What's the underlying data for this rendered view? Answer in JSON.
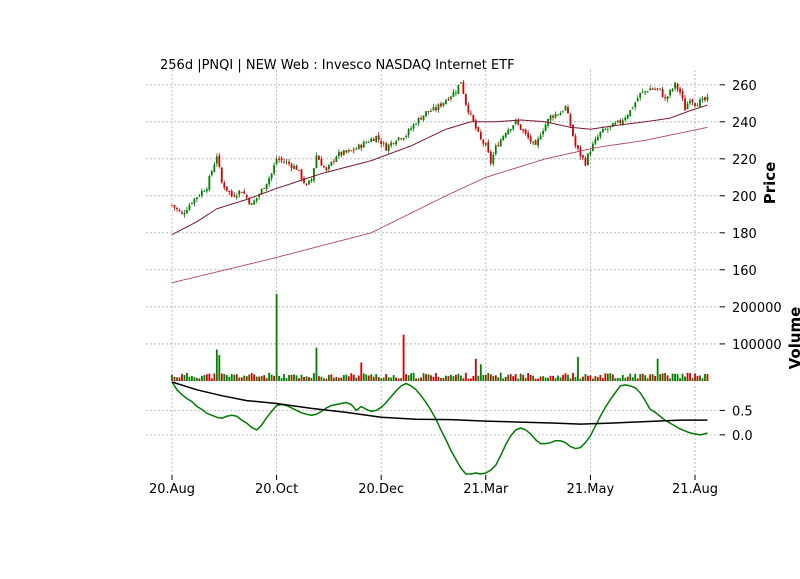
{
  "chart_data": [
    {
      "type": "candlestick",
      "title": "256d |PNQI | NEW Web : Invesco NASDAQ Internet ETF",
      "ylabel": "Price",
      "ylim": [
        148,
        268
      ],
      "yticks": [
        160,
        180,
        200,
        220,
        240,
        260
      ],
      "x_tick_labels": [
        "20.Aug",
        "20.Oct",
        "20.Dec",
        "21.Mar",
        "21.May",
        "21.Aug"
      ],
      "x_tick_index": [
        0,
        42,
        84,
        126,
        168,
        210
      ],
      "n_bars": 216,
      "close_anchors": [
        [
          0,
          195
        ],
        [
          4,
          190
        ],
        [
          8,
          197
        ],
        [
          14,
          205
        ],
        [
          18,
          222
        ],
        [
          20,
          207
        ],
        [
          24,
          200
        ],
        [
          28,
          203
        ],
        [
          32,
          195
        ],
        [
          36,
          203
        ],
        [
          40,
          212
        ],
        [
          42,
          220
        ],
        [
          46,
          218
        ],
        [
          50,
          215
        ],
        [
          54,
          205
        ],
        [
          56,
          209
        ],
        [
          58,
          222
        ],
        [
          62,
          213
        ],
        [
          66,
          222
        ],
        [
          72,
          224
        ],
        [
          78,
          229
        ],
        [
          82,
          232
        ],
        [
          86,
          226
        ],
        [
          90,
          231
        ],
        [
          94,
          233
        ],
        [
          98,
          240
        ],
        [
          102,
          245
        ],
        [
          106,
          247
        ],
        [
          110,
          252
        ],
        [
          114,
          257
        ],
        [
          116,
          262
        ],
        [
          118,
          250
        ],
        [
          120,
          243
        ],
        [
          124,
          230
        ],
        [
          126,
          227
        ],
        [
          128,
          218
        ],
        [
          130,
          226
        ],
        [
          134,
          235
        ],
        [
          138,
          240
        ],
        [
          142,
          233
        ],
        [
          146,
          226
        ],
        [
          148,
          234
        ],
        [
          152,
          243
        ],
        [
          156,
          245
        ],
        [
          158,
          248
        ],
        [
          160,
          238
        ],
        [
          162,
          227
        ],
        [
          164,
          222
        ],
        [
          166,
          218
        ],
        [
          168,
          225
        ],
        [
          172,
          234
        ],
        [
          176,
          237
        ],
        [
          180,
          240
        ],
        [
          184,
          246
        ],
        [
          188,
          255
        ],
        [
          192,
          258
        ],
        [
          196,
          257
        ],
        [
          198,
          252
        ],
        [
          202,
          260
        ],
        [
          204,
          256
        ],
        [
          206,
          247
        ],
        [
          208,
          253
        ],
        [
          210,
          250
        ],
        [
          215,
          252
        ]
      ],
      "sma_short": [
        [
          0,
          179
        ],
        [
          10,
          186
        ],
        [
          18,
          193
        ],
        [
          30,
          198
        ],
        [
          42,
          204
        ],
        [
          60,
          212
        ],
        [
          80,
          219
        ],
        [
          96,
          227
        ],
        [
          110,
          236
        ],
        [
          120,
          240
        ],
        [
          130,
          240
        ],
        [
          140,
          241
        ],
        [
          150,
          240
        ],
        [
          160,
          237
        ],
        [
          168,
          236
        ],
        [
          178,
          238
        ],
        [
          190,
          240
        ],
        [
          200,
          242
        ],
        [
          208,
          246
        ],
        [
          215,
          249
        ]
      ],
      "sma_long": [
        [
          0,
          153
        ],
        [
          40,
          166
        ],
        [
          80,
          180
        ],
        [
          110,
          200
        ],
        [
          126,
          210
        ],
        [
          150,
          220
        ],
        [
          170,
          226
        ],
        [
          190,
          230
        ],
        [
          215,
          237
        ]
      ],
      "up_color": "#008000",
      "down_color": "#d40000",
      "sma_short_color": "#7a1830",
      "sma_long_color": "#b04a60"
    },
    {
      "type": "bar",
      "ylabel": "Volume",
      "ylim": [
        0,
        240000
      ],
      "yticks": [
        100000,
        200000
      ],
      "spikes": [
        [
          18,
          85000
        ],
        [
          19,
          70000
        ],
        [
          42,
          235000
        ],
        [
          58,
          90000
        ],
        [
          76,
          50000
        ],
        [
          93,
          125000
        ],
        [
          122,
          60000
        ],
        [
          124,
          45000
        ],
        [
          163,
          65000
        ],
        [
          195,
          60000
        ]
      ],
      "base_volume": 18000
    },
    {
      "type": "line",
      "ylim": [
        -0.82,
        1.1
      ],
      "yticks": [
        0.0,
        0.5
      ],
      "ytick_labels": [
        "0.0",
        "0.5"
      ],
      "series": [
        {
          "color": "#007a00",
          "points": [
            [
              0,
              1.08
            ],
            [
              2,
              0.92
            ],
            [
              4,
              0.82
            ],
            [
              6,
              0.74
            ],
            [
              8,
              0.68
            ],
            [
              10,
              0.58
            ],
            [
              12,
              0.52
            ],
            [
              14,
              0.44
            ],
            [
              16,
              0.4
            ],
            [
              18,
              0.36
            ],
            [
              20,
              0.34
            ],
            [
              22,
              0.38
            ],
            [
              24,
              0.4
            ],
            [
              26,
              0.38
            ],
            [
              28,
              0.3
            ],
            [
              30,
              0.24
            ],
            [
              32,
              0.15
            ],
            [
              34,
              0.1
            ],
            [
              36,
              0.2
            ],
            [
              38,
              0.35
            ],
            [
              40,
              0.48
            ],
            [
              42,
              0.6
            ],
            [
              44,
              0.62
            ],
            [
              46,
              0.6
            ],
            [
              48,
              0.55
            ],
            [
              50,
              0.5
            ],
            [
              52,
              0.45
            ],
            [
              54,
              0.42
            ],
            [
              56,
              0.4
            ],
            [
              58,
              0.42
            ],
            [
              60,
              0.48
            ],
            [
              62,
              0.55
            ],
            [
              64,
              0.6
            ],
            [
              66,
              0.62
            ],
            [
              68,
              0.64
            ],
            [
              70,
              0.66
            ],
            [
              72,
              0.62
            ],
            [
              74,
              0.5
            ],
            [
              76,
              0.58
            ],
            [
              78,
              0.52
            ],
            [
              80,
              0.48
            ],
            [
              82,
              0.5
            ],
            [
              84,
              0.56
            ],
            [
              86,
              0.66
            ],
            [
              88,
              0.78
            ],
            [
              90,
              0.9
            ],
            [
              92,
              1.0
            ],
            [
              94,
              1.05
            ],
            [
              96,
              1.0
            ],
            [
              98,
              0.92
            ],
            [
              100,
              0.8
            ],
            [
              102,
              0.66
            ],
            [
              104,
              0.5
            ],
            [
              106,
              0.32
            ],
            [
              108,
              0.1
            ],
            [
              110,
              -0.1
            ],
            [
              112,
              -0.32
            ],
            [
              114,
              -0.5
            ],
            [
              116,
              -0.68
            ],
            [
              118,
              -0.8
            ],
            [
              120,
              -0.8
            ],
            [
              122,
              -0.78
            ],
            [
              124,
              -0.8
            ],
            [
              126,
              -0.78
            ],
            [
              128,
              -0.72
            ],
            [
              130,
              -0.62
            ],
            [
              132,
              -0.42
            ],
            [
              134,
              -0.2
            ],
            [
              136,
              -0.02
            ],
            [
              138,
              0.1
            ],
            [
              140,
              0.14
            ],
            [
              142,
              0.1
            ],
            [
              144,
              0.02
            ],
            [
              146,
              -0.1
            ],
            [
              148,
              -0.18
            ],
            [
              150,
              -0.18
            ],
            [
              152,
              -0.16
            ],
            [
              154,
              -0.12
            ],
            [
              156,
              -0.12
            ],
            [
              158,
              -0.16
            ],
            [
              160,
              -0.24
            ],
            [
              162,
              -0.28
            ],
            [
              164,
              -0.26
            ],
            [
              166,
              -0.16
            ],
            [
              168,
              -0.02
            ],
            [
              170,
              0.18
            ],
            [
              172,
              0.38
            ],
            [
              174,
              0.56
            ],
            [
              176,
              0.72
            ],
            [
              178,
              0.86
            ],
            [
              180,
              1.0
            ],
            [
              182,
              1.02
            ],
            [
              184,
              1.0
            ],
            [
              186,
              0.96
            ],
            [
              188,
              0.86
            ],
            [
              190,
              0.7
            ],
            [
              192,
              0.52
            ],
            [
              194,
              0.46
            ],
            [
              196,
              0.38
            ],
            [
              198,
              0.3
            ],
            [
              200,
              0.24
            ],
            [
              202,
              0.18
            ],
            [
              204,
              0.12
            ],
            [
              206,
              0.08
            ],
            [
              208,
              0.04
            ],
            [
              210,
              0.02
            ],
            [
              212,
              0.0
            ],
            [
              214,
              0.02
            ],
            [
              215,
              0.04
            ]
          ]
        },
        {
          "color": "#000000",
          "points": [
            [
              0,
              1.08
            ],
            [
              10,
              0.92
            ],
            [
              20,
              0.8
            ],
            [
              30,
              0.7
            ],
            [
              42,
              0.64
            ],
            [
              56,
              0.54
            ],
            [
              70,
              0.46
            ],
            [
              84,
              0.36
            ],
            [
              98,
              0.32
            ],
            [
              112,
              0.31
            ],
            [
              126,
              0.28
            ],
            [
              140,
              0.26
            ],
            [
              154,
              0.24
            ],
            [
              164,
              0.22
            ],
            [
              176,
              0.24
            ],
            [
              190,
              0.27
            ],
            [
              204,
              0.3
            ],
            [
              215,
              0.3
            ]
          ]
        }
      ]
    }
  ]
}
